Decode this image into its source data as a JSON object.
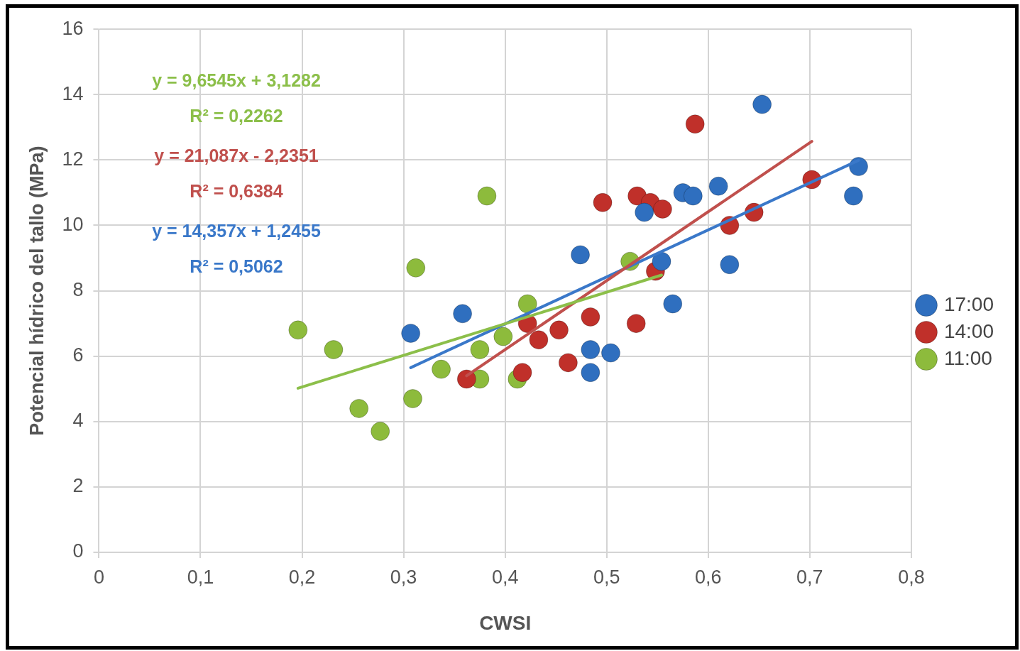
{
  "chart_data": {
    "type": "scatter",
    "xlabel": "CWSI",
    "ylabel": "Potencial hídrico del tallo (MPa)",
    "xlim": [
      0,
      0.8
    ],
    "xticks": [
      0,
      {
        "value": 0.1,
        "label": "0,1"
      },
      {
        "value": 0.2,
        "label": "0,2"
      },
      {
        "value": 0.3,
        "label": "0,3"
      },
      {
        "value": 0.4,
        "label": "0,4"
      },
      {
        "value": 0.5,
        "label": "0,5"
      },
      {
        "value": 0.6,
        "label": "0,6"
      },
      {
        "value": 0.7,
        "label": "0,7"
      },
      {
        "value": 0.8,
        "label": "0,8"
      }
    ],
    "ylim": [
      0,
      16
    ],
    "yticks": [
      0,
      2,
      4,
      6,
      8,
      10,
      12,
      14,
      16
    ],
    "grid": true,
    "legend": "right",
    "marker": "circle",
    "series": [
      {
        "name": "17:00",
        "color": "#2f6fbf",
        "x": [
          0.307,
          0.358,
          0.474,
          0.484,
          0.484,
          0.504,
          0.537,
          0.554,
          0.565,
          0.575,
          0.585,
          0.61,
          0.621,
          0.653,
          0.743,
          0.748
        ],
        "values": [
          6.7,
          7.3,
          9.1,
          6.2,
          5.5,
          6.1,
          10.4,
          8.9,
          7.6,
          11.0,
          10.9,
          11.2,
          8.8,
          13.7,
          10.9,
          11.8
        ]
      },
      {
        "name": "14:00",
        "color": "#c0302a",
        "x": [
          0.362,
          0.417,
          0.422,
          0.433,
          0.453,
          0.462,
          0.484,
          0.496,
          0.529,
          0.53,
          0.543,
          0.555,
          0.548,
          0.587,
          0.621,
          0.645,
          0.702
        ],
        "values": [
          5.3,
          5.5,
          7.0,
          6.5,
          6.8,
          5.8,
          7.2,
          10.7,
          7.0,
          10.9,
          10.7,
          10.5,
          8.6,
          13.1,
          10.0,
          10.4,
          11.4
        ]
      },
      {
        "name": "11:00",
        "color": "#8dbb3c",
        "x": [
          0.196,
          0.231,
          0.256,
          0.277,
          0.309,
          0.312,
          0.337,
          0.375,
          0.375,
          0.382,
          0.398,
          0.412,
          0.422,
          0.523
        ],
        "values": [
          6.8,
          6.2,
          4.4,
          3.7,
          4.7,
          8.7,
          5.6,
          6.2,
          5.3,
          10.9,
          6.6,
          5.3,
          7.6,
          8.9
        ]
      },
      {
        "type": "line",
        "marker": "none",
        "color": "#8cbf4a",
        "x": [
          0.196,
          0.554
        ],
        "values": [
          5.02,
          8.48
        ]
      },
      {
        "type": "line",
        "marker": "none",
        "color": "#c0504d",
        "x": [
          0.362,
          0.702
        ],
        "values": [
          5.4,
          12.57
        ]
      },
      {
        "type": "line",
        "marker": "none",
        "color": "#3a78c9",
        "x": [
          0.307,
          0.748
        ],
        "values": [
          5.65,
          11.99
        ]
      }
    ],
    "annotations": [
      "y = 9,6545x + 3,1282",
      "R² = 0,2262",
      "y = 21,087x - 2,2351",
      "R² = 0,6384",
      "y = 14,357x + 1,2455",
      "R² = 0,5062"
    ]
  }
}
